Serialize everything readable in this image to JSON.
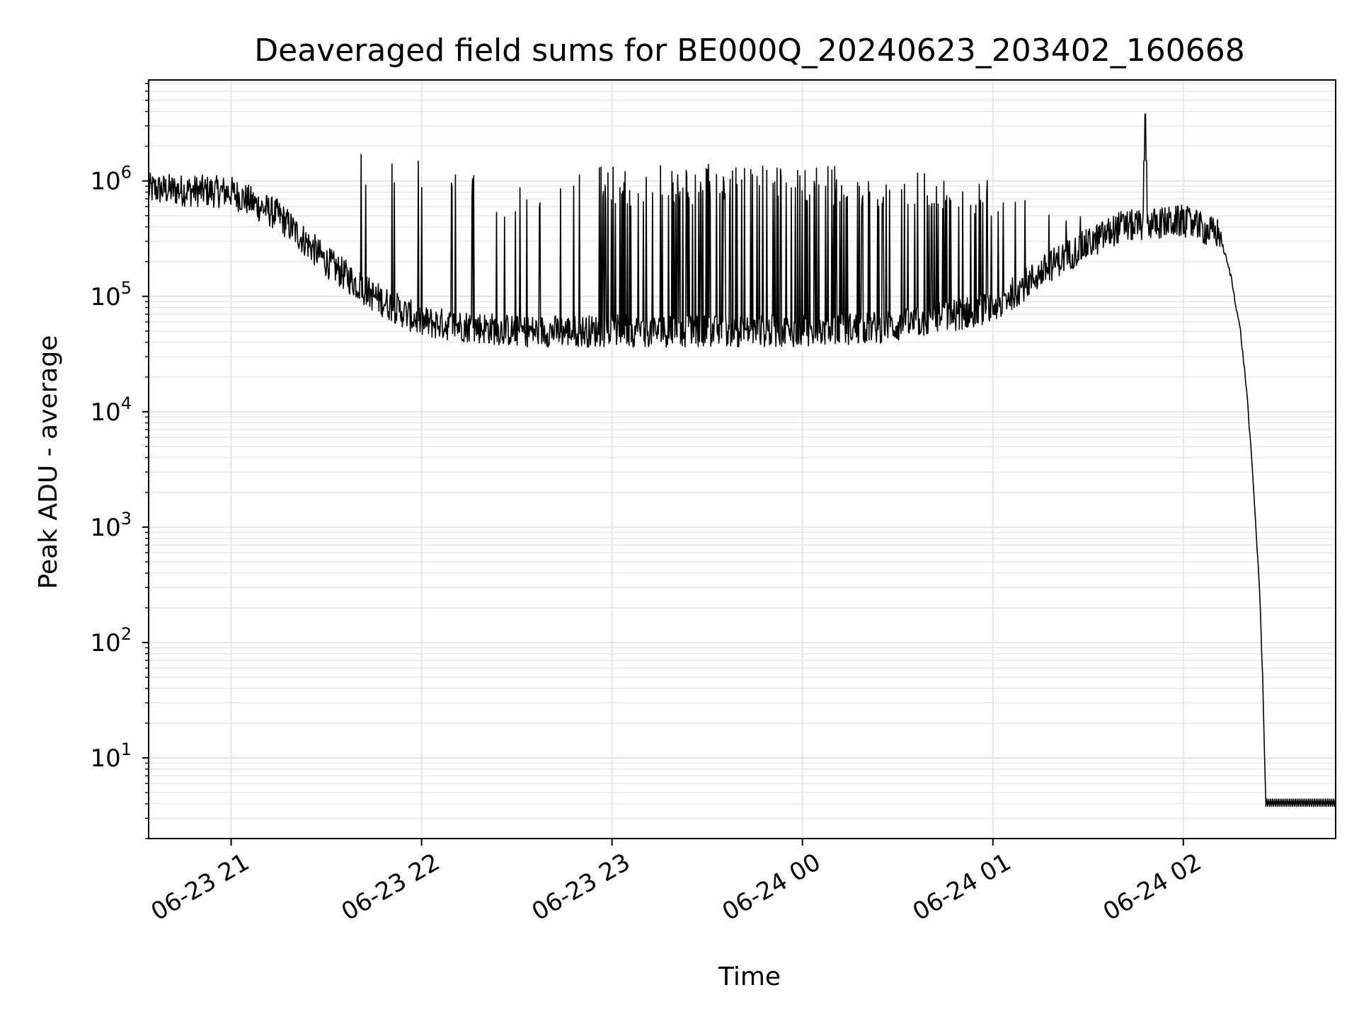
{
  "chart_data": {
    "type": "line",
    "title": "Deaveraged field sums for BE000Q_20240623_203402_160668",
    "xlabel": "Time",
    "ylabel": "Peak ADU - average",
    "y_scale": "log",
    "ylim": [
      2,
      7500000.0
    ],
    "xlim": [
      "06-23 20:34",
      "06-24 02:48"
    ],
    "grid": true,
    "line_color": "#000000",
    "grid_color": "#e6e6e6",
    "x_ticks": [
      "06-23 21",
      "06-23 22",
      "06-23 23",
      "06-24 00",
      "06-24 01",
      "06-24 02"
    ],
    "y_ticks": [
      {
        "value": 10,
        "base": "10",
        "exp": "1"
      },
      {
        "value": 100,
        "base": "10",
        "exp": "2"
      },
      {
        "value": 1000,
        "base": "10",
        "exp": "3"
      },
      {
        "value": 10000,
        "base": "10",
        "exp": "4"
      },
      {
        "value": 100000,
        "base": "10",
        "exp": "5"
      },
      {
        "value": 1000000,
        "base": "10",
        "exp": "6"
      }
    ],
    "baseline": [
      {
        "time": "06-23 20:34",
        "value": 850000
      },
      {
        "time": "06-23 21:00",
        "value": 800000
      },
      {
        "time": "06-23 21:15",
        "value": 500000
      },
      {
        "time": "06-23 21:30",
        "value": 200000
      },
      {
        "time": "06-23 21:45",
        "value": 100000
      },
      {
        "time": "06-23 22:00",
        "value": 60000
      },
      {
        "time": "06-23 22:30",
        "value": 50000
      },
      {
        "time": "06-23 23:00",
        "value": 50000
      },
      {
        "time": "06-24 00:00",
        "value": 50000
      },
      {
        "time": "06-24 00:30",
        "value": 55000
      },
      {
        "time": "06-24 01:00",
        "value": 80000
      },
      {
        "time": "06-24 01:20",
        "value": 200000
      },
      {
        "time": "06-24 01:40",
        "value": 400000
      },
      {
        "time": "06-24 02:00",
        "value": 450000
      },
      {
        "time": "06-24 02:10",
        "value": 350000
      }
    ],
    "spike_tops": [
      {
        "time": "06-23 22:00",
        "value": 1900000
      },
      {
        "time": "06-23 22:20",
        "value": 1000000
      },
      {
        "time": "06-23 22:30",
        "value": 1000000
      },
      {
        "time": "06-23 22:40",
        "value": 1400000
      },
      {
        "time": "06-23 23:00",
        "value": 1350000
      },
      {
        "time": "06-23 23:30",
        "value": 1400000
      },
      {
        "time": "06-24 00:00",
        "value": 1350000
      },
      {
        "time": "06-24 00:30",
        "value": 1300000
      },
      {
        "time": "06-24 01:00",
        "value": 1100000
      },
      {
        "time": "06-24 01:30",
        "value": 900000
      },
      {
        "time": "06-24 02:00",
        "value": 700000
      }
    ],
    "peak": {
      "time": "06-24 01:48",
      "value": 3800000
    },
    "decay": [
      {
        "time": "06-24 02:12",
        "value": 300000
      },
      {
        "time": "06-24 02:15",
        "value": 150000
      },
      {
        "time": "06-24 02:18",
        "value": 50000
      },
      {
        "time": "06-24 02:20",
        "value": 15000
      },
      {
        "time": "06-24 02:22",
        "value": 2500
      },
      {
        "time": "06-24 02:24",
        "value": 300
      },
      {
        "time": "06-24 02:25",
        "value": 50
      },
      {
        "time": "06-24 02:26",
        "value": 4
      }
    ],
    "floor": {
      "start": "06-24 02:26",
      "end": "06-24 02:48",
      "low": 3.8,
      "high": 4.4
    }
  }
}
